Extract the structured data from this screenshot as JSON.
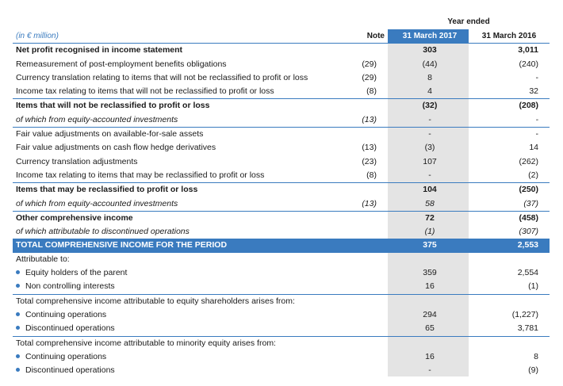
{
  "header": {
    "year_ended": "Year ended",
    "units": "(in € million)",
    "note": "Note",
    "col_2017": "31 March 2017",
    "col_2016": "31 March 2016"
  },
  "rows": [
    {
      "label": "Net profit recognised in income statement",
      "note": "",
      "v2017": "303",
      "v2016": "3,011"
    },
    {
      "label": "Remeasurement of post-employment benefits obligations",
      "note": "(29)",
      "v2017": "(44)",
      "v2016": "(240)"
    },
    {
      "label": "Currency translation relating to items that will not be reclassified to profit or loss",
      "note": "(29)",
      "v2017": "8",
      "v2016": "-"
    },
    {
      "label": "Income tax relating to items that will not be reclassified to profit or loss",
      "note": "(8)",
      "v2017": "4",
      "v2016": "32"
    },
    {
      "label": "Items that will not be reclassified to profit or loss",
      "note": "",
      "v2017": "(32)",
      "v2016": "(208)"
    },
    {
      "label": "of which from equity-accounted investments",
      "note": "(13)",
      "v2017": "-",
      "v2016": "-"
    },
    {
      "label": "Fair value adjustments on available-for-sale assets",
      "note": "",
      "v2017": "-",
      "v2016": "-"
    },
    {
      "label": "Fair value adjustments on cash flow hedge derivatives",
      "note": "(13)",
      "v2017": "(3)",
      "v2016": "14"
    },
    {
      "label": "Currency translation adjustments",
      "note": "(23)",
      "v2017": "107",
      "v2016": "(262)"
    },
    {
      "label": "Income tax relating to items that may be reclassified to profit or loss",
      "note": "(8)",
      "v2017": "-",
      "v2016": "(2)"
    },
    {
      "label": "Items that may be reclassified to profit or loss",
      "note": "",
      "v2017": "104",
      "v2016": "(250)"
    },
    {
      "label": "of which from equity-accounted investments",
      "note": "(13)",
      "v2017": "58",
      "v2016": "(37)"
    },
    {
      "label": "Other comprehensive income",
      "note": "",
      "v2017": "72",
      "v2016": "(458)"
    },
    {
      "label": "of which attributable to discontinued operations",
      "note": "",
      "v2017": "(1)",
      "v2016": "(307)"
    },
    {
      "label": "TOTAL COMPREHENSIVE INCOME FOR THE PERIOD",
      "note": "",
      "v2017": "375",
      "v2016": "2,553"
    },
    {
      "label": "Attributable to:",
      "note": "",
      "v2017": "",
      "v2016": ""
    },
    {
      "label": "Equity holders of the parent",
      "note": "",
      "v2017": "359",
      "v2016": "2,554"
    },
    {
      "label": "Non controlling interests",
      "note": "",
      "v2017": "16",
      "v2016": "(1)"
    },
    {
      "label": "Total comprehensive income attributable to equity shareholders arises from:",
      "note": "",
      "v2017": "",
      "v2016": ""
    },
    {
      "label": "Continuing operations",
      "note": "",
      "v2017": "294",
      "v2016": "(1,227)"
    },
    {
      "label": "Discontinued operations",
      "note": "",
      "v2017": "65",
      "v2016": "3,781"
    },
    {
      "label": "Total comprehensive income attributable to minority equity arises from:",
      "note": "",
      "v2017": "",
      "v2016": ""
    },
    {
      "label": "Continuing operations",
      "note": "",
      "v2017": "16",
      "v2016": "8"
    },
    {
      "label": "Discontinued operations",
      "note": "",
      "v2017": "-",
      "v2016": "(9)"
    }
  ]
}
